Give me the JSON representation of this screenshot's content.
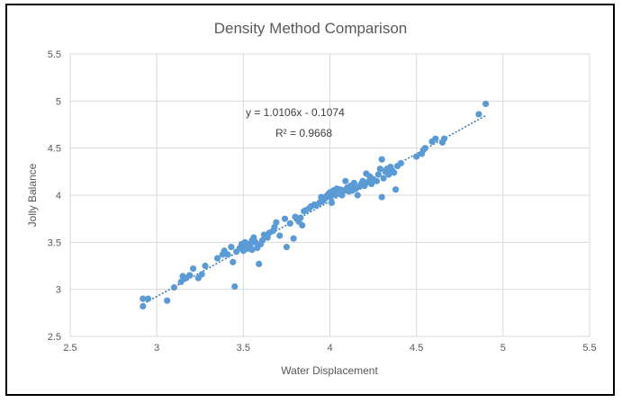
{
  "chart_data": {
    "type": "scatter",
    "title": "Density Method Comparison",
    "xlabel": "Water Displacement",
    "ylabel": "Jolly Balance",
    "xlim": [
      2.5,
      5.5
    ],
    "ylim": [
      2.5,
      5.5
    ],
    "x_ticks": [
      "2.5",
      "3",
      "3.5",
      "4",
      "4.5",
      "5",
      "5.5"
    ],
    "y_ticks": [
      "2.5",
      "3",
      "3.5",
      "4",
      "4.5",
      "5",
      "5.5"
    ],
    "grid": true,
    "legend": "none",
    "point_color": "#5b9bd5",
    "trendline": {
      "type": "linear",
      "slope": 1.0106,
      "intercept": -0.1074,
      "x_range": [
        2.92,
        4.9
      ],
      "equation_label": "y = 1.0106x - 0.1074",
      "r2_label": "R² = 0.9668",
      "color": "#2e75b6"
    },
    "points": [
      [
        2.92,
        2.82
      ],
      [
        2.92,
        2.9
      ],
      [
        2.95,
        2.9
      ],
      [
        3.06,
        2.88
      ],
      [
        3.1,
        3.02
      ],
      [
        3.14,
        3.08
      ],
      [
        3.15,
        3.14
      ],
      [
        3.17,
        3.12
      ],
      [
        3.19,
        3.15
      ],
      [
        3.21,
        3.22
      ],
      [
        3.24,
        3.12
      ],
      [
        3.26,
        3.16
      ],
      [
        3.28,
        3.25
      ],
      [
        3.35,
        3.33
      ],
      [
        3.38,
        3.37
      ],
      [
        3.39,
        3.41
      ],
      [
        3.41,
        3.37
      ],
      [
        3.43,
        3.45
      ],
      [
        3.44,
        3.29
      ],
      [
        3.45,
        3.03
      ],
      [
        3.46,
        3.4
      ],
      [
        3.48,
        3.44
      ],
      [
        3.49,
        3.48
      ],
      [
        3.5,
        3.41
      ],
      [
        3.5,
        3.45
      ],
      [
        3.51,
        3.5
      ],
      [
        3.52,
        3.43
      ],
      [
        3.53,
        3.48
      ],
      [
        3.54,
        3.46
      ],
      [
        3.55,
        3.52
      ],
      [
        3.55,
        3.42
      ],
      [
        3.56,
        3.55
      ],
      [
        3.57,
        3.5
      ],
      [
        3.58,
        3.44
      ],
      [
        3.59,
        3.27
      ],
      [
        3.6,
        3.48
      ],
      [
        3.61,
        3.52
      ],
      [
        3.62,
        3.58
      ],
      [
        3.64,
        3.55
      ],
      [
        3.65,
        3.6
      ],
      [
        3.67,
        3.62
      ],
      [
        3.68,
        3.66
      ],
      [
        3.69,
        3.71
      ],
      [
        3.71,
        3.57
      ],
      [
        3.74,
        3.75
      ],
      [
        3.75,
        3.45
      ],
      [
        3.77,
        3.7
      ],
      [
        3.79,
        3.54
      ],
      [
        3.8,
        3.77
      ],
      [
        3.82,
        3.72
      ],
      [
        3.83,
        3.76
      ],
      [
        3.84,
        3.68
      ],
      [
        3.85,
        3.83
      ],
      [
        3.86,
        3.84
      ],
      [
        3.88,
        3.86
      ],
      [
        3.89,
        3.88
      ],
      [
        3.91,
        3.9
      ],
      [
        3.92,
        3.89
      ],
      [
        3.94,
        3.92
      ],
      [
        3.95,
        3.98
      ],
      [
        3.96,
        3.94
      ],
      [
        3.97,
        3.96
      ],
      [
        3.98,
        3.99
      ],
      [
        3.99,
        4.01
      ],
      [
        4.0,
        3.98
      ],
      [
        4.0,
        4.03
      ],
      [
        4.01,
        3.92
      ],
      [
        4.02,
        4.05
      ],
      [
        4.03,
        4.0
      ],
      [
        4.04,
        4.07
      ],
      [
        4.05,
        4.02
      ],
      [
        4.06,
        4.06
      ],
      [
        4.07,
        4.0
      ],
      [
        4.08,
        4.05
      ],
      [
        4.09,
        4.15
      ],
      [
        4.1,
        4.08
      ],
      [
        4.11,
        4.04
      ],
      [
        4.12,
        4.1
      ],
      [
        4.13,
        4.05
      ],
      [
        4.14,
        4.13
      ],
      [
        4.15,
        4.07
      ],
      [
        4.16,
        4.0
      ],
      [
        4.17,
        4.09
      ],
      [
        4.18,
        4.12
      ],
      [
        4.19,
        4.15
      ],
      [
        4.2,
        4.1
      ],
      [
        4.21,
        4.23
      ],
      [
        4.22,
        4.14
      ],
      [
        4.23,
        4.2
      ],
      [
        4.24,
        4.12
      ],
      [
        4.25,
        4.17
      ],
      [
        4.27,
        4.15
      ],
      [
        4.28,
        4.22
      ],
      [
        4.29,
        4.28
      ],
      [
        4.3,
        3.98
      ],
      [
        4.3,
        4.38
      ],
      [
        4.31,
        4.18
      ],
      [
        4.32,
        4.25
      ],
      [
        4.33,
        4.28
      ],
      [
        4.34,
        4.22
      ],
      [
        4.35,
        4.3
      ],
      [
        4.36,
        4.26
      ],
      [
        4.37,
        4.24
      ],
      [
        4.38,
        4.06
      ],
      [
        4.39,
        4.31
      ],
      [
        4.41,
        4.34
      ],
      [
        4.5,
        4.41
      ],
      [
        4.53,
        4.44
      ],
      [
        4.54,
        4.48
      ],
      [
        4.55,
        4.5
      ],
      [
        4.59,
        4.57
      ],
      [
        4.61,
        4.6
      ],
      [
        4.65,
        4.56
      ],
      [
        4.66,
        4.6
      ],
      [
        4.86,
        4.86
      ],
      [
        4.9,
        4.97
      ]
    ]
  }
}
